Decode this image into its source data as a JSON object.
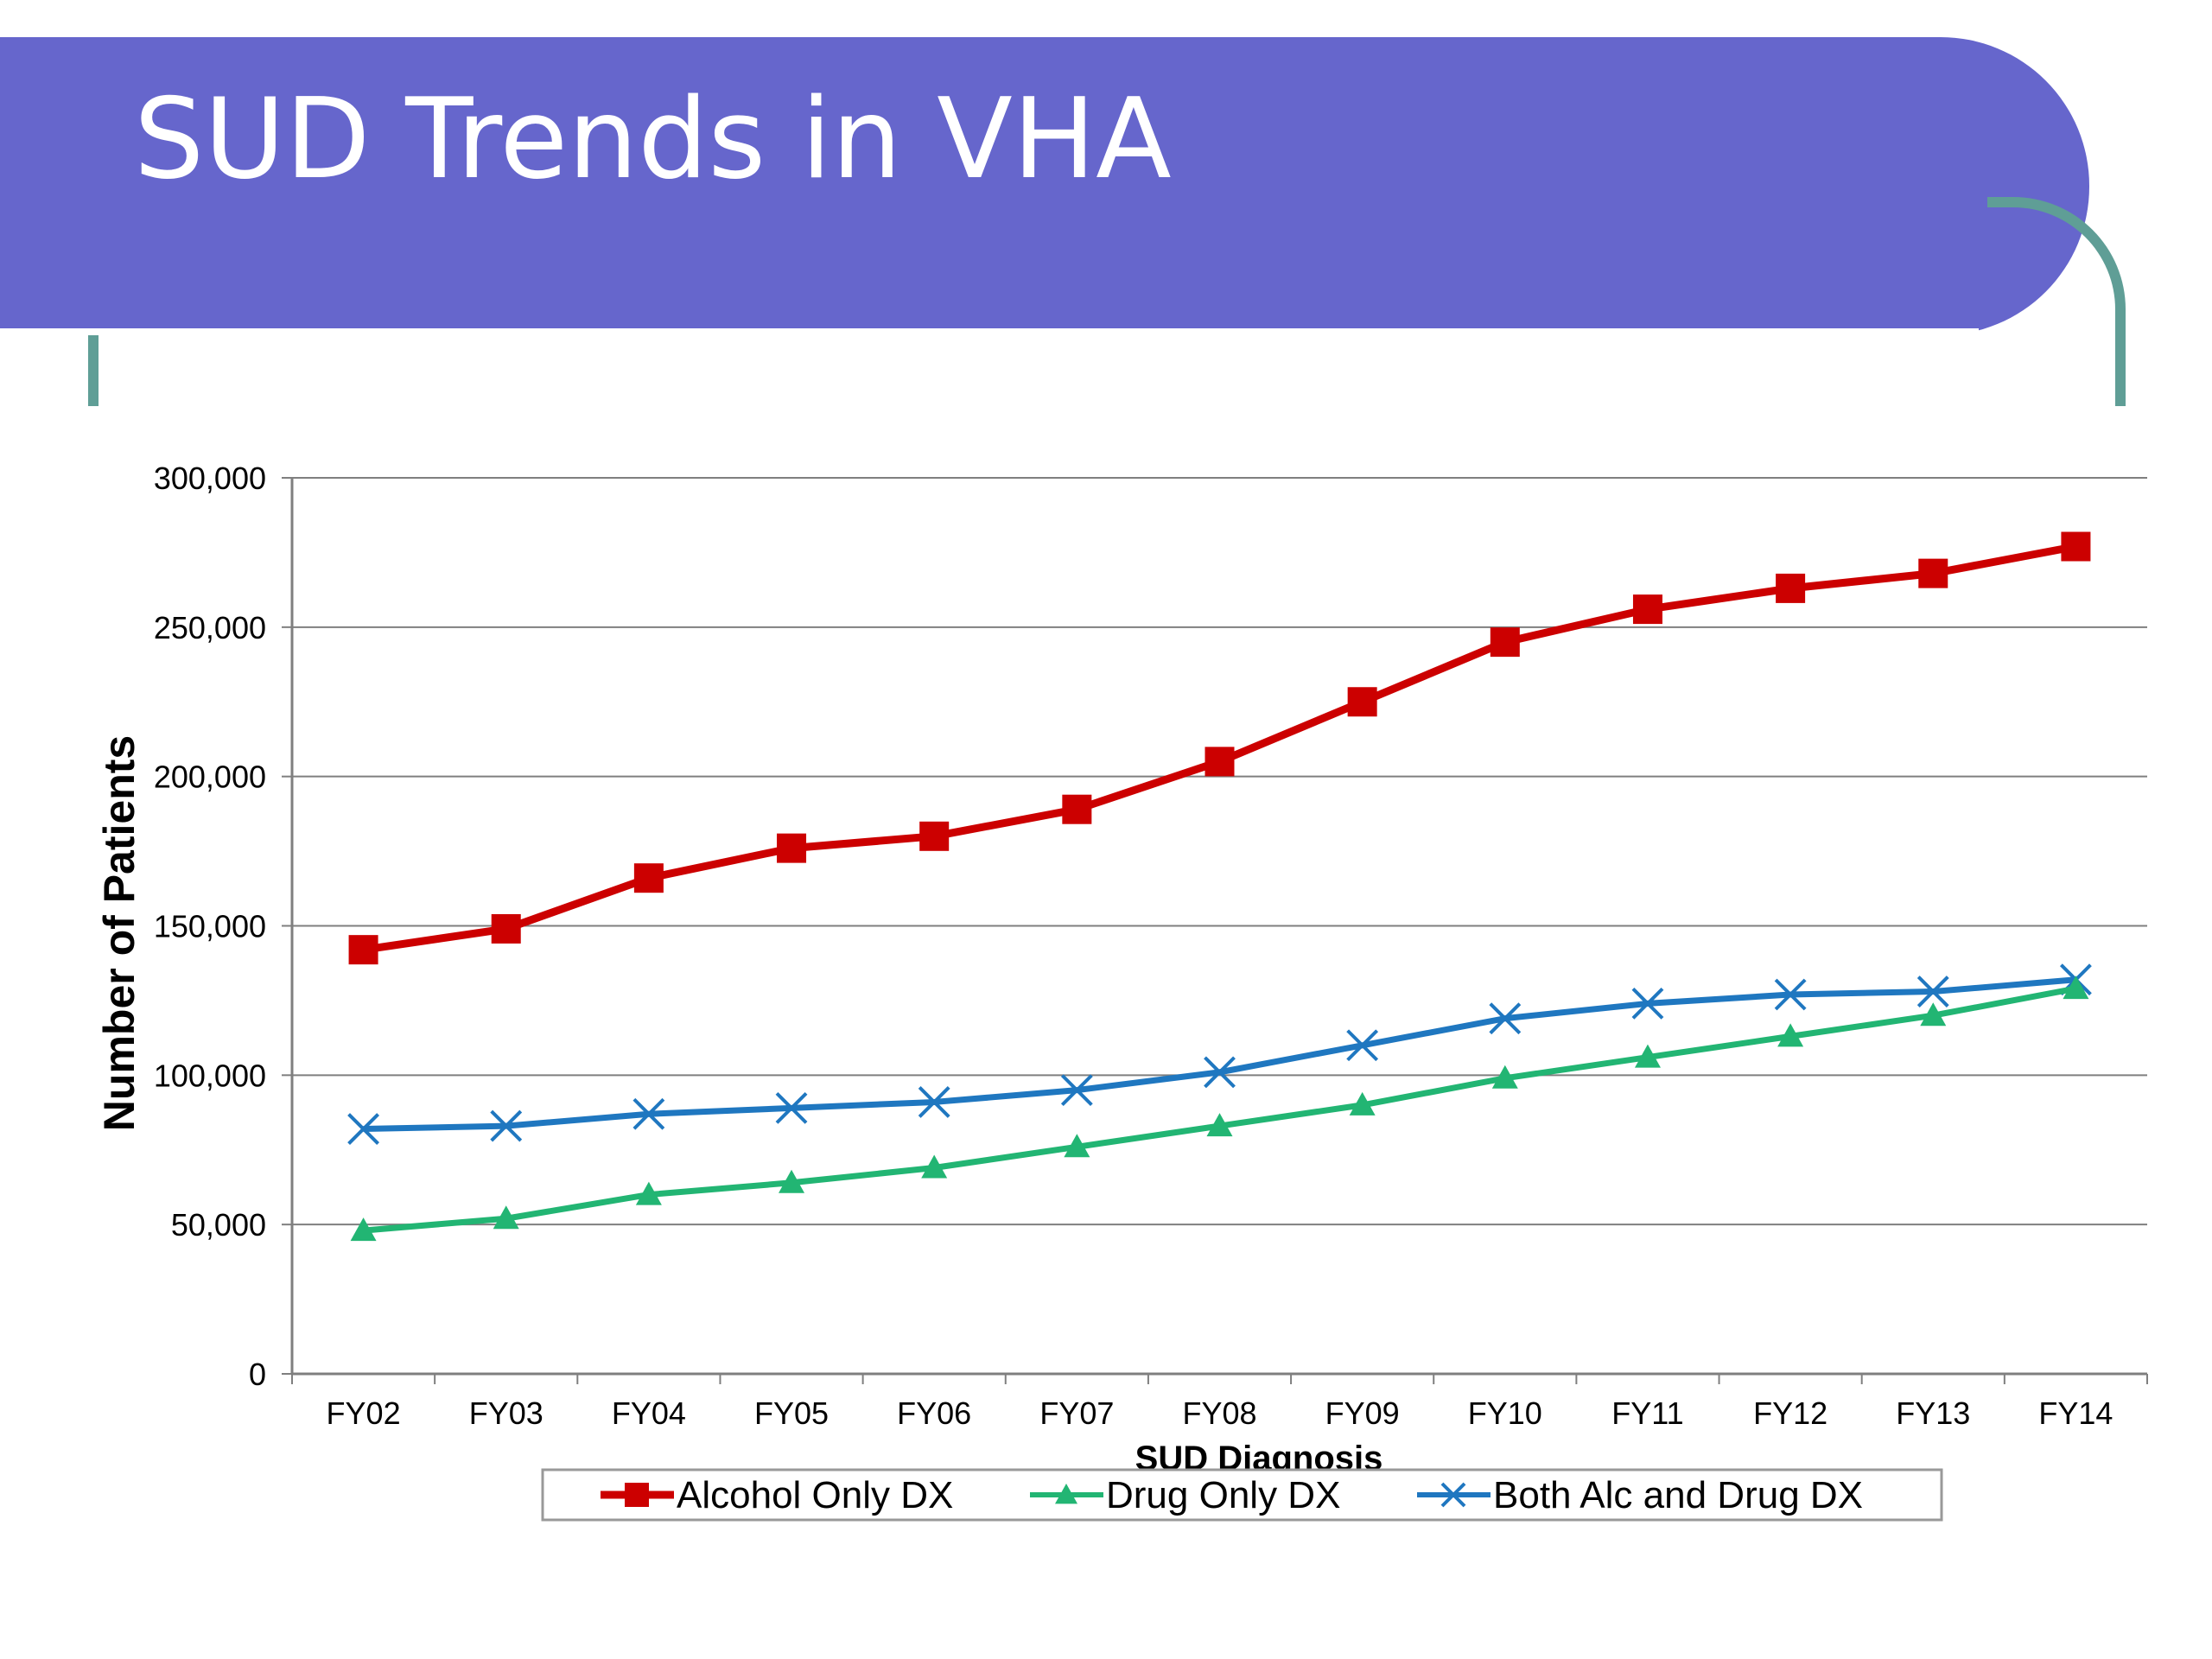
{
  "slide": {
    "title": "SUD Trends in VHA"
  },
  "colors": {
    "header": "#6666cc",
    "bracket": "#5f9e96",
    "alcohol": "#cc0000",
    "drug": "#22b573",
    "both": "#1f77c0"
  },
  "chart_data": {
    "type": "line",
    "title": "",
    "xlabel": "SUD Diagnosis",
    "ylabel": "Number of Patients",
    "categories": [
      "FY02",
      "FY03",
      "FY04",
      "FY05",
      "FY06",
      "FY07",
      "FY08",
      "FY09",
      "FY10",
      "FY11",
      "FY12",
      "FY13",
      "FY14"
    ],
    "ylim": [
      0,
      300000
    ],
    "yticks": [
      0,
      50000,
      100000,
      150000,
      200000,
      250000,
      300000
    ],
    "ytick_labels": [
      "0",
      "50,000",
      "100,000",
      "150,000",
      "200,000",
      "250,000",
      "300,000"
    ],
    "grid": true,
    "legend_position": "bottom",
    "series": [
      {
        "name": "Alcohol Only DX",
        "color": "#cc0000",
        "marker": "square",
        "values": [
          142000,
          149000,
          166000,
          176000,
          180000,
          189000,
          205000,
          225000,
          245000,
          256000,
          263000,
          268000,
          277000
        ]
      },
      {
        "name": "Drug Only DX",
        "color": "#22b573",
        "marker": "triangle",
        "values": [
          48000,
          52000,
          60000,
          64000,
          69000,
          76000,
          83000,
          90000,
          99000,
          106000,
          113000,
          120000,
          129000
        ]
      },
      {
        "name": "Both Alc and Drug DX",
        "color": "#1f77c0",
        "marker": "x",
        "values": [
          82000,
          83000,
          87000,
          89000,
          91000,
          95000,
          101000,
          110000,
          119000,
          124000,
          127000,
          128000,
          132000
        ]
      }
    ]
  }
}
